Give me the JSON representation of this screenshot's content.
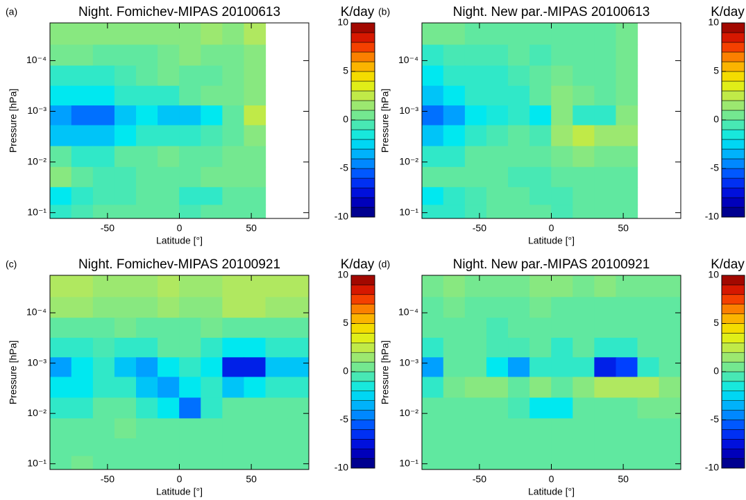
{
  "chart_data": [
    {
      "type": "heatmap",
      "panel_label": "(a)",
      "title": "Night. Fomichev-MIPAS  20100613",
      "xlabel": "Latitude [°]",
      "ylabel": "Pressure [hPa]",
      "x": [
        -82.5,
        -67.5,
        -52.5,
        -37.5,
        -22.5,
        -7.5,
        7.5,
        22.5,
        37.5,
        52.5,
        67.5,
        82.5
      ],
      "y": [
        3e-05,
        8e-05,
        0.0002,
        0.0005,
        0.0012,
        0.003,
        0.008,
        0.02,
        0.05,
        0.1
      ],
      "z": [
        [
          1,
          1,
          1,
          1,
          1,
          1,
          1,
          1.5,
          1,
          2,
          null,
          null
        ],
        [
          0.5,
          0.5,
          0,
          0,
          0,
          0.5,
          1,
          0.5,
          0.5,
          1,
          null,
          null
        ],
        [
          -1,
          -1,
          -1,
          -0.5,
          0,
          0.5,
          0,
          0,
          0.5,
          1,
          null,
          null
        ],
        [
          -2,
          -2,
          -2,
          -1,
          -1,
          -1,
          0,
          0.5,
          0.5,
          1,
          null,
          null
        ],
        [
          -4,
          -5,
          -5,
          -3,
          -2,
          -3,
          -3,
          -2,
          0,
          2.5,
          null,
          null
        ],
        [
          -3,
          -3,
          -3,
          -2,
          -1,
          -1,
          -1,
          -0.5,
          0,
          1,
          null,
          null
        ],
        [
          0,
          -1,
          -1,
          0,
          0,
          0.5,
          0,
          0,
          0.5,
          0.5,
          null,
          null
        ],
        [
          1,
          0,
          -0.5,
          -0.5,
          0,
          0,
          0,
          0.5,
          0.5,
          0.5,
          null,
          null
        ],
        [
          -2,
          -1,
          -0.5,
          -0.5,
          0,
          0,
          -1,
          -1,
          0,
          0,
          null,
          null
        ],
        [
          -1,
          -0.5,
          0,
          0,
          0,
          0,
          -0.5,
          0,
          0,
          0,
          null,
          null
        ]
      ],
      "xlim": [
        -90,
        90
      ],
      "ylim": [
        0.13,
        1.8e-05
      ],
      "log_y": true,
      "xticks": [
        -50,
        0,
        50
      ],
      "yticks": [
        {
          "value": 0.0001,
          "label": "10⁻⁴"
        },
        {
          "value": 0.001,
          "label": "10⁻³"
        },
        {
          "value": 0.01,
          "label": "10⁻²"
        },
        {
          "value": 0.1,
          "label": "10⁻¹"
        }
      ],
      "colorbar": {
        "label": "K/day",
        "lim": [
          -10,
          10
        ],
        "ticks": [
          -10,
          -5,
          0,
          5,
          10
        ]
      },
      "colors": [
        "#00007a",
        "#0000d0",
        "#0040ff",
        "#00a0ff",
        "#00e8f0",
        "#60e8a0",
        "#b0e860",
        "#f0f000",
        "#ffa000",
        "#f02000",
        "#880000"
      ]
    },
    {
      "type": "heatmap",
      "panel_label": "(b)",
      "title": "Night. New par.-MIPAS  20100613",
      "xlabel": "Latitude [°]",
      "ylabel": "Pressure [hPa]",
      "x": [
        -82.5,
        -67.5,
        -52.5,
        -37.5,
        -22.5,
        -7.5,
        7.5,
        22.5,
        37.5,
        52.5,
        67.5,
        82.5
      ],
      "y": [
        3e-05,
        8e-05,
        0.0002,
        0.0005,
        0.0012,
        0.003,
        0.008,
        0.02,
        0.05,
        0.1
      ],
      "z": [
        [
          0.5,
          0.5,
          0,
          0,
          0,
          0,
          0,
          0,
          0,
          0.5,
          null,
          null
        ],
        [
          -1,
          -0.5,
          -0.5,
          -0.5,
          0,
          -0.5,
          0,
          0,
          0,
          0.5,
          null,
          null
        ],
        [
          -2,
          -1,
          -1,
          -1,
          -0.5,
          0,
          0.5,
          0,
          0,
          0.5,
          null,
          null
        ],
        [
          -3,
          -2,
          -1,
          -1,
          -1,
          0,
          1,
          0.5,
          0,
          0.5,
          null,
          null
        ],
        [
          -5,
          -4,
          -2,
          -1.5,
          -1,
          -2,
          1,
          -1,
          -1,
          1,
          null,
          null
        ],
        [
          -3,
          -2,
          -1,
          -0.5,
          0,
          -0.5,
          1.5,
          2.5,
          1.5,
          1.5,
          null,
          null
        ],
        [
          -1,
          -1,
          0,
          0,
          0,
          0,
          0.5,
          1,
          0.5,
          0.5,
          null,
          null
        ],
        [
          0,
          0,
          0,
          0,
          -0.5,
          -0.5,
          0,
          0,
          0,
          0,
          null,
          null
        ],
        [
          -2,
          -1,
          -0.5,
          0,
          0,
          -0.5,
          -0.5,
          0,
          0,
          0,
          null,
          null
        ],
        [
          -1,
          -1,
          -0.5,
          0,
          0,
          0,
          -0.5,
          0,
          0,
          0,
          null,
          null
        ]
      ],
      "xlim": [
        -90,
        90
      ],
      "ylim": [
        0.13,
        1.8e-05
      ],
      "log_y": true,
      "xticks": [
        -50,
        0,
        50
      ],
      "yticks": [
        {
          "value": 0.0001,
          "label": "10⁻⁴"
        },
        {
          "value": 0.001,
          "label": "10⁻³"
        },
        {
          "value": 0.01,
          "label": "10⁻²"
        },
        {
          "value": 0.1,
          "label": "10⁻¹"
        }
      ],
      "colorbar": {
        "label": "K/day",
        "lim": [
          -10,
          10
        ],
        "ticks": [
          -10,
          -5,
          0,
          5,
          10
        ]
      },
      "colors": [
        "#00007a",
        "#0000d0",
        "#0040ff",
        "#00a0ff",
        "#00e8f0",
        "#60e8a0",
        "#b0e860",
        "#f0f000",
        "#ffa000",
        "#f02000",
        "#880000"
      ]
    },
    {
      "type": "heatmap",
      "panel_label": "(c)",
      "title": "Night. Fomichev-MIPAS  20100921",
      "xlabel": "Latitude [°]",
      "ylabel": "Pressure [hPa]",
      "x": [
        -82.5,
        -67.5,
        -52.5,
        -37.5,
        -22.5,
        -7.5,
        7.5,
        22.5,
        37.5,
        52.5,
        67.5,
        82.5
      ],
      "y": [
        3e-05,
        8e-05,
        0.0002,
        0.0005,
        0.0012,
        0.003,
        0.008,
        0.02,
        0.05,
        0.1
      ],
      "z": [
        [
          2,
          2,
          1.5,
          1.5,
          1.5,
          2,
          1.5,
          1.5,
          2,
          2,
          2,
          2
        ],
        [
          1.5,
          1.5,
          1,
          1,
          1,
          1.5,
          1,
          1,
          2,
          2,
          1.5,
          1.5
        ],
        [
          0,
          0,
          0,
          0.5,
          0,
          0,
          0,
          0.5,
          0,
          0,
          0,
          0
        ],
        [
          -1,
          -1,
          -0.5,
          -1,
          -1,
          0,
          0,
          -1,
          -2,
          -2,
          -1,
          -1
        ],
        [
          -4,
          -2,
          -1,
          -3,
          -4,
          -2,
          -1,
          -2,
          -7,
          -7,
          -3,
          -3
        ],
        [
          -2,
          -2,
          -1,
          -1,
          -3,
          -4,
          -2,
          -1,
          -3,
          -2,
          -1,
          -1
        ],
        [
          -1,
          -1,
          0,
          0,
          -1,
          -2,
          -5,
          -1,
          0,
          0,
          0,
          0
        ],
        [
          0,
          0,
          0,
          0.5,
          0,
          0,
          0,
          0,
          0,
          0,
          0,
          0
        ],
        [
          0,
          0,
          0,
          0,
          0,
          0,
          0,
          0,
          0,
          0,
          0,
          0
        ],
        [
          0,
          0.5,
          0,
          0,
          0,
          0,
          0,
          0,
          0,
          0,
          0,
          0
        ]
      ],
      "xlim": [
        -90,
        90
      ],
      "ylim": [
        0.13,
        1.8e-05
      ],
      "log_y": true,
      "xticks": [
        -50,
        0,
        50
      ],
      "yticks": [
        {
          "value": 0.0001,
          "label": "10⁻⁴"
        },
        {
          "value": 0.001,
          "label": "10⁻³"
        },
        {
          "value": 0.01,
          "label": "10⁻²"
        },
        {
          "value": 0.1,
          "label": "10⁻¹"
        }
      ],
      "colorbar": {
        "label": "K/day",
        "lim": [
          -10,
          10
        ],
        "ticks": [
          -10,
          -5,
          0,
          5,
          10
        ]
      },
      "colors": [
        "#00007a",
        "#0000d0",
        "#0040ff",
        "#00a0ff",
        "#00e8f0",
        "#60e8a0",
        "#b0e860",
        "#f0f000",
        "#ffa000",
        "#f02000",
        "#880000"
      ]
    },
    {
      "type": "heatmap",
      "panel_label": "(d)",
      "title": "Night. New par.-MIPAS  20100921",
      "xlabel": "Latitude [°]",
      "ylabel": "Pressure [hPa]",
      "x": [
        -82.5,
        -67.5,
        -52.5,
        -37.5,
        -22.5,
        -7.5,
        7.5,
        22.5,
        37.5,
        52.5,
        67.5,
        82.5
      ],
      "y": [
        3e-05,
        8e-05,
        0.0002,
        0.0005,
        0.0012,
        0.003,
        0.008,
        0.02,
        0.05,
        0.1
      ],
      "z": [
        [
          0.5,
          1,
          0.5,
          0.5,
          0.5,
          1,
          1,
          0.5,
          1,
          0.5,
          0.5,
          0.5
        ],
        [
          0,
          0.5,
          0,
          0,
          0,
          0.5,
          0,
          0,
          0,
          0,
          0,
          0
        ],
        [
          0,
          0,
          0,
          -0.5,
          0,
          0,
          0,
          0,
          0,
          0,
          0,
          0
        ],
        [
          -1,
          0,
          0,
          -0.5,
          -0.5,
          0,
          -1,
          0,
          -1,
          -1,
          0,
          0
        ],
        [
          -4,
          0,
          0,
          -2,
          -4,
          -1,
          -1,
          -1,
          -7,
          -6,
          -1,
          0
        ],
        [
          -1,
          0.5,
          1,
          1,
          0,
          1,
          0,
          1,
          2,
          2,
          2,
          1
        ],
        [
          0,
          0,
          0,
          0,
          -0.5,
          -2,
          -2,
          0,
          0,
          0,
          0.5,
          0.5
        ],
        [
          0,
          0,
          0,
          0,
          0,
          0,
          0,
          0,
          0,
          0,
          0,
          0
        ],
        [
          0,
          0,
          0,
          0,
          0,
          0,
          0,
          0,
          0,
          0,
          0,
          0
        ],
        [
          0,
          0,
          0,
          0,
          0,
          0,
          0,
          0,
          0,
          0,
          0,
          0
        ]
      ],
      "xlim": [
        -90,
        90
      ],
      "ylim": [
        0.13,
        1.8e-05
      ],
      "log_y": true,
      "xticks": [
        -50,
        0,
        50
      ],
      "yticks": [
        {
          "value": 0.0001,
          "label": "10⁻⁴"
        },
        {
          "value": 0.001,
          "label": "10⁻³"
        },
        {
          "value": 0.01,
          "label": "10⁻²"
        },
        {
          "value": 0.1,
          "label": "10⁻¹"
        }
      ],
      "colorbar": {
        "label": "K/day",
        "lim": [
          -10,
          10
        ],
        "ticks": [
          -10,
          -5,
          0,
          5,
          10
        ]
      },
      "colors": [
        "#00007a",
        "#0000d0",
        "#0040ff",
        "#00a0ff",
        "#00e8f0",
        "#60e8a0",
        "#b0e860",
        "#f0f000",
        "#ffa000",
        "#f02000",
        "#880000"
      ]
    }
  ]
}
